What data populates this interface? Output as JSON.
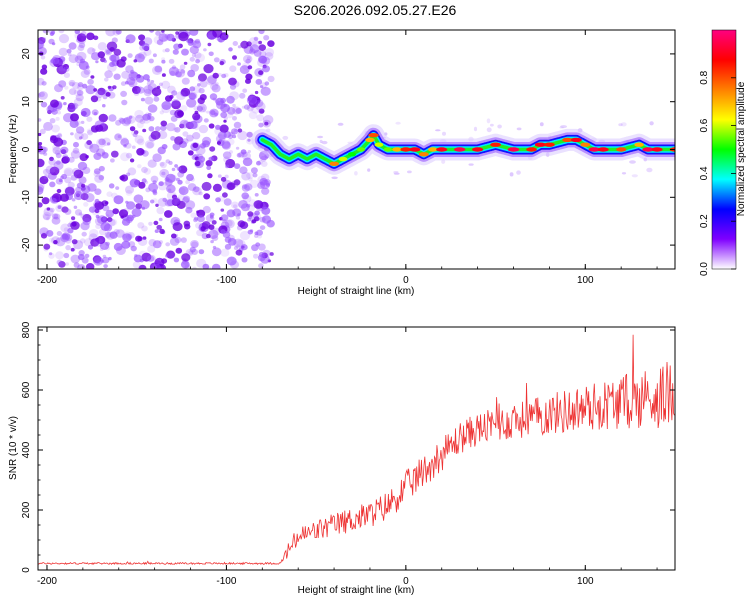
{
  "title": "S206.2026.092.05.27.E26",
  "chart_data": [
    {
      "type": "heatmap",
      "title": "S206.2026.092.05.27.E26",
      "xlabel": "Height of straight line (km)",
      "ylabel": "Frequency (Hz)",
      "xlim": [
        -205,
        150
      ],
      "ylim": [
        -25,
        25
      ],
      "xticks": [
        -200,
        -100,
        0,
        100
      ],
      "xtick_labels": [
        "-200",
        "-100",
        "0",
        "100"
      ],
      "yticks": [
        -20,
        -10,
        0,
        10,
        20
      ],
      "ytick_labels": [
        "-20",
        "-10",
        "0",
        "10",
        "20"
      ],
      "colorbar": {
        "label": "Normalized spectral amplitude",
        "range": [
          0,
          1
        ],
        "ticks": [
          0.0,
          0.2,
          0.4,
          0.6,
          0.8
        ],
        "tick_labels": [
          "0.0",
          "0.2",
          "0.4",
          "0.6",
          "0.8"
        ],
        "colormap_stops": [
          "#ffffff",
          "#7f00ff",
          "#0000ff",
          "#00ffff",
          "#00ff00",
          "#ffff00",
          "#ff8000",
          "#ff0000",
          "#ff0080"
        ]
      },
      "noise_region_x": [
        -205,
        -78
      ],
      "ridge": {
        "x": [
          -80,
          -75,
          -70,
          -65,
          -60,
          -55,
          -50,
          -45,
          -40,
          -35,
          -30,
          -25,
          -20,
          -18,
          -15,
          -10,
          -5,
          0,
          5,
          10,
          15,
          20,
          30,
          40,
          50,
          60,
          70,
          75,
          80,
          90,
          95,
          100,
          105,
          110,
          120,
          130,
          135,
          140,
          150
        ],
        "freq": [
          2,
          1,
          -1,
          -2,
          -1,
          -2,
          -1,
          -2,
          -3,
          -2,
          -1,
          0,
          2,
          3,
          1,
          0,
          0,
          0,
          0,
          -1,
          0,
          0,
          0,
          0,
          1,
          0,
          0,
          1,
          1,
          2,
          2,
          1,
          0,
          0,
          0,
          1,
          0,
          0,
          0
        ],
        "amplitude": [
          0.3,
          0.25,
          0.15,
          0.2,
          0.2,
          0.25,
          0.3,
          0.45,
          0.75,
          0.6,
          0.5,
          0.55,
          0.7,
          0.8,
          0.6,
          0.55,
          0.7,
          0.85,
          0.9,
          0.75,
          0.7,
          0.9,
          0.95,
          0.9,
          0.85,
          0.95,
          0.85,
          0.9,
          0.85,
          0.8,
          0.9,
          0.75,
          0.95,
          0.9,
          0.8,
          0.7,
          0.95,
          0.9,
          0.85
        ]
      }
    },
    {
      "type": "line",
      "xlabel": "Height of straight line (km)",
      "ylabel": "SNR (10 * v/v)",
      "xlim": [
        -205,
        150
      ],
      "ylim": [
        0,
        810
      ],
      "xticks": [
        -200,
        -100,
        0,
        100
      ],
      "xtick_labels": [
        "-200",
        "-100",
        "0",
        "100"
      ],
      "yticks": [
        0,
        200,
        400,
        600,
        800
      ],
      "ytick_labels": [
        "0",
        "200",
        "400",
        "600",
        "800"
      ],
      "series": [
        {
          "name": "SNR",
          "color": "#ee3333",
          "trend_x": [
            -205,
            -70,
            -65,
            -60,
            -40,
            -20,
            -10,
            0,
            10,
            20,
            30,
            40,
            60,
            80,
            100,
            120,
            140,
            150
          ],
          "trend_y": [
            22,
            22,
            70,
            110,
            150,
            185,
            215,
            275,
            330,
            385,
            440,
            470,
            495,
            520,
            540,
            560,
            580,
            590
          ],
          "noise_amplitude": [
            3,
            3,
            30,
            35,
            40,
            45,
            50,
            55,
            55,
            55,
            55,
            55,
            60,
            70,
            80,
            90,
            110,
            110
          ]
        }
      ]
    }
  ]
}
